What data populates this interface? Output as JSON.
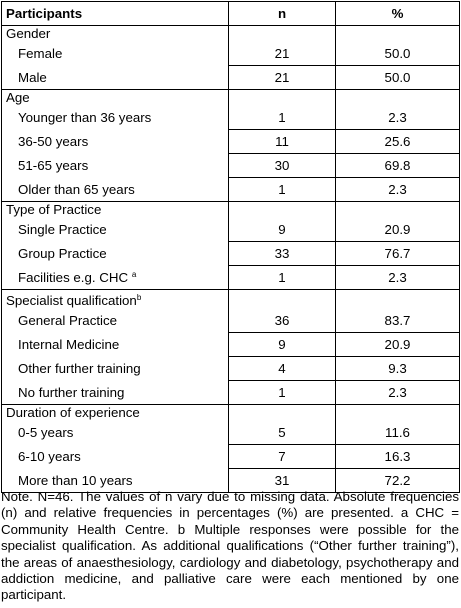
{
  "table": {
    "header": [
      "Participants",
      "n",
      "%"
    ],
    "groups": [
      {
        "title": "Gender",
        "rows": [
          {
            "label": "Female",
            "n": "21",
            "pct": "50.0"
          },
          {
            "label": "Male",
            "n": "21",
            "pct": "50.0"
          }
        ]
      },
      {
        "title": "Age",
        "rows": [
          {
            "label": "Younger than 36 years",
            "n": "1",
            "pct": "2.3"
          },
          {
            "label": "36-50 years",
            "n": "11",
            "pct": "25.6"
          },
          {
            "label": "51-65 years",
            "n": "30",
            "pct": "69.8"
          },
          {
            "label": "Older than 65 years",
            "n": "1",
            "pct": "2.3"
          }
        ]
      },
      {
        "title": "Type of Practice",
        "rows": [
          {
            "label": "Single Practice",
            "n": "9",
            "pct": "20.9"
          },
          {
            "label": "Group Practice",
            "n": "33",
            "pct": "76.7"
          },
          {
            "label": "Facilities e.g. CHC",
            "sup": "a",
            "n": "1",
            "pct": "2.3"
          }
        ]
      },
      {
        "title": "Specialist qualification",
        "sup": "b",
        "rows": [
          {
            "label": "General Practice",
            "n": "36",
            "pct": "83.7"
          },
          {
            "label": "Internal Medicine",
            "n": "9",
            "pct": "20.9"
          },
          {
            "label": "Other further training",
            "n": "4",
            "pct": "9.3"
          },
          {
            "label": "No further training",
            "n": "1",
            "pct": "2.3"
          }
        ]
      },
      {
        "title": "Duration of experience",
        "rows": [
          {
            "label": "0-5 years",
            "n": "5",
            "pct": "11.6"
          },
          {
            "label": "6-10 years",
            "n": "7",
            "pct": "16.3"
          },
          {
            "label": "More than 10 years",
            "n": "31",
            "pct": "72.2"
          }
        ]
      }
    ]
  },
  "note": "Note. N=46. The values of n vary due to missing data. Absolute frequencies (n) and relative frequencies in percentages (%) are presented. a CHC = Community Health Centre. b Multiple responses were possible for the specialist qualification. As additional qualifications (“Other further training”), the areas of anaesthesiology, cardiology and diabetology, psychotherapy and addiction medicine, and palliative care were each mentioned by one participant."
}
